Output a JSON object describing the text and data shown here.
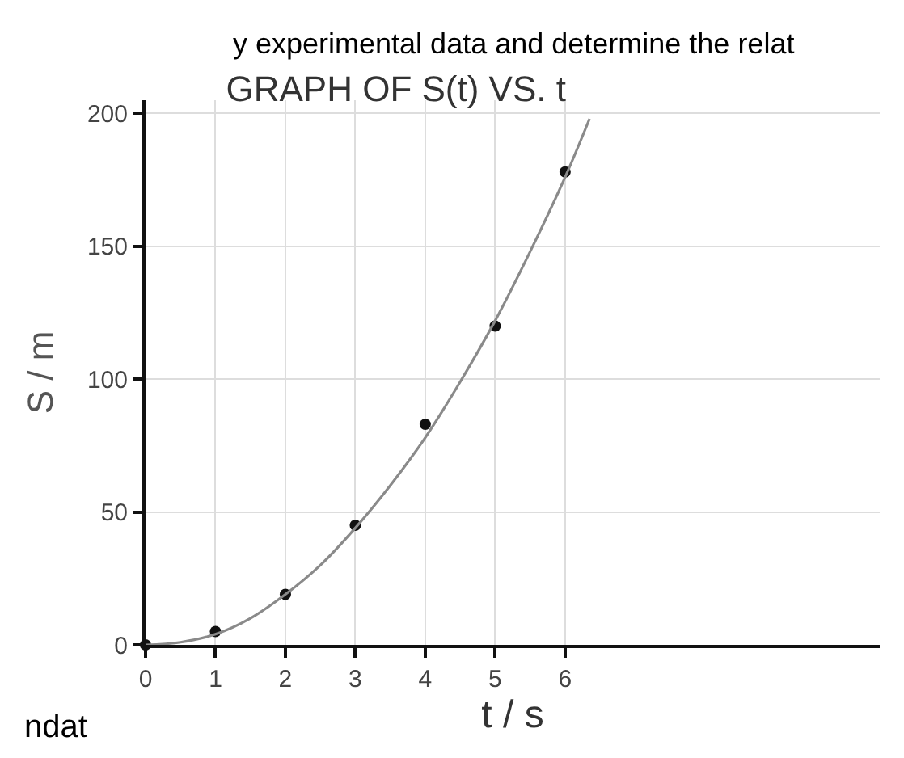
{
  "chart_data": {
    "type": "scatter",
    "title": "GRAPH OF S(t) VS. t",
    "xlabel": "t / s",
    "ylabel": "S / m",
    "xlim": [
      0,
      10.5
    ],
    "xticks": [
      0,
      1,
      2,
      3,
      4,
      5,
      6
    ],
    "ylim": [
      0,
      205
    ],
    "yticks": [
      0,
      50,
      100,
      150,
      200
    ],
    "grid": true,
    "series": [
      {
        "marker": "circle",
        "color": "#111111",
        "x": [
          0,
          1,
          2,
          3,
          4,
          5,
          6
        ],
        "values": [
          0,
          5,
          19,
          45,
          83,
          120,
          178
        ]
      },
      {
        "type": "line",
        "color": "#8a8a8a",
        "line_style": "solid",
        "marker": "none",
        "x": [
          0,
          0.5,
          1,
          1.5,
          2,
          2.5,
          3,
          3.5,
          4,
          4.5,
          5,
          5.5,
          6,
          6.35
        ],
        "values": [
          0,
          1,
          4,
          10,
          19,
          30,
          44,
          60,
          78,
          99,
          122,
          148,
          176,
          198
        ]
      }
    ],
    "annotations": [
      "y experimental data and determine the relat",
      "ndat"
    ]
  }
}
